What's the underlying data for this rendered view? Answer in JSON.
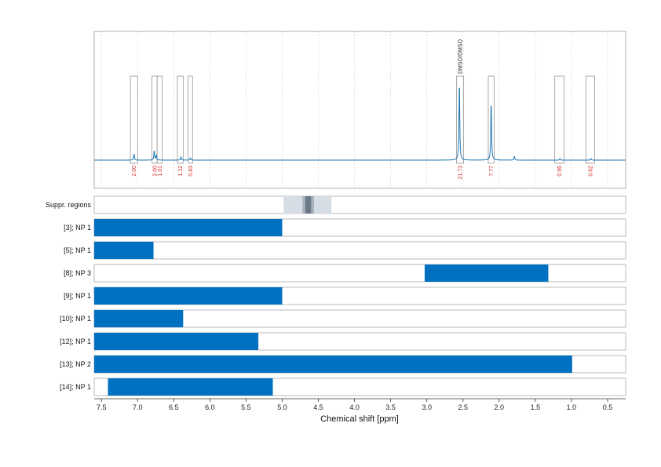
{
  "chart_data": {
    "type": "nmr-spectrum-with-range-bars",
    "xlabel": "Chemical shift [ppm]",
    "x_reversed": true,
    "xlim": [
      7.6,
      0.25
    ],
    "x_ticks": [
      7.5,
      7.0,
      6.5,
      6.0,
      5.5,
      5.0,
      4.5,
      4.0,
      3.5,
      3.0,
      2.5,
      2.0,
      1.5,
      1.0,
      0.5
    ],
    "x_tick_labels": [
      "7.5",
      "7.0",
      "6.5",
      "6.0",
      "5.5",
      "5.0",
      "4.5",
      "4.0",
      "3.5",
      "3.0",
      "2.5",
      "2.0",
      "1.5",
      "1.0",
      "0.5"
    ],
    "grid": true,
    "color_spectrum": "#1f77b4",
    "color_bars": "#0070c0",
    "color_integrals": "#d62728",
    "spectrum": {
      "peaks": [
        {
          "ppm": 7.05,
          "height": 0.08
        },
        {
          "ppm": 6.77,
          "height": 0.12
        },
        {
          "ppm": 6.74,
          "height": 0.06
        },
        {
          "ppm": 6.4,
          "height": 0.04
        },
        {
          "ppm": 6.27,
          "height": 0.03
        },
        {
          "ppm": 2.55,
          "height": 1.0
        },
        {
          "ppm": 2.11,
          "height": 0.75
        },
        {
          "ppm": 1.79,
          "height": 0.05
        },
        {
          "ppm": 1.16,
          "height": 0.02
        },
        {
          "ppm": 0.73,
          "height": 0.02
        }
      ]
    },
    "integrals": [
      {
        "from": 7.1,
        "to": 7.0,
        "label": "2.00"
      },
      {
        "from": 6.8,
        "to": 6.73,
        "label": "2.00"
      },
      {
        "from": 6.73,
        "to": 6.66,
        "label": "1.01"
      },
      {
        "from": 6.45,
        "to": 6.37,
        "label": "1.12"
      },
      {
        "from": 6.3,
        "to": 6.24,
        "label": "0.83"
      },
      {
        "from": 2.59,
        "to": 2.49,
        "label": "21.73"
      },
      {
        "from": 2.15,
        "to": 2.07,
        "label": "7.77"
      },
      {
        "from": 1.23,
        "to": 1.1,
        "label": "0.95"
      },
      {
        "from": 0.8,
        "to": 0.68,
        "label": "0.62"
      }
    ],
    "annotations": [
      {
        "ppm": 2.54,
        "text": "DMSO/DMSO"
      }
    ],
    "suppression_region": {
      "label": "Suppr. regions",
      "outer": [
        4.98,
        4.32
      ],
      "inner": [
        4.72,
        4.56
      ],
      "core": [
        4.68,
        4.6
      ]
    },
    "bar_rows": [
      {
        "label": "[3]; NP 1",
        "from": 7.6,
        "to": 5.0
      },
      {
        "label": "[5]; NP 1",
        "from": 7.6,
        "to": 6.78
      },
      {
        "label": "[8]; NP 3",
        "from": 3.03,
        "to": 1.32
      },
      {
        "label": "[9]; NP 1",
        "from": 7.6,
        "to": 5.0
      },
      {
        "label": "[10]; NP 1",
        "from": 7.6,
        "to": 6.37
      },
      {
        "label": "[12]; NP 1",
        "from": 7.6,
        "to": 5.33
      },
      {
        "label": "[13]; NP 2",
        "from": 7.6,
        "to": 0.99
      },
      {
        "label": "[14]; NP 1",
        "from": 7.41,
        "to": 5.13
      }
    ]
  }
}
